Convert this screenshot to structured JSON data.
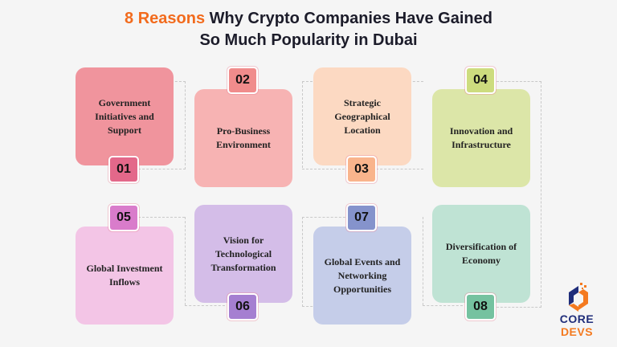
{
  "title": {
    "highlight": "8 Reasons",
    "rest_line1": " Why Crypto Companies Have Gained",
    "line2": "So Much Popularity in Dubai"
  },
  "colors": {
    "highlight": "#f26b1d",
    "logo_blue": "#1f2d7a",
    "logo_orange": "#f47a20"
  },
  "items": [
    {
      "number": "01",
      "label": "Government Initiatives and Support",
      "card": "#f0949d",
      "badge": "#e3688a"
    },
    {
      "number": "02",
      "label": "Pro-Business Environment",
      "card": "#f7b3b3",
      "badge": "#f08c8c"
    },
    {
      "number": "03",
      "label": "Strategic Geographical Location",
      "card": "#fcd9c2",
      "badge": "#f9b48c"
    },
    {
      "number": "04",
      "label": "Innovation and Infrastructure",
      "card": "#dce6a8",
      "badge": "#cddc7e"
    },
    {
      "number": "05",
      "label": "Global Investment Inflows",
      "card": "#f3c5e6",
      "badge": "#d97ccb"
    },
    {
      "number": "06",
      "label": "Vision for Technological Transformation",
      "card": "#d4bde8",
      "badge": "#a57fd1"
    },
    {
      "number": "07",
      "label": "Global Events and Networking Opportunities",
      "card": "#c5cde9",
      "badge": "#8593cc"
    },
    {
      "number": "08",
      "label": "Diversification of Economy",
      "card": "#bfe3d4",
      "badge": "#75c2a0"
    }
  ],
  "logo": {
    "word1": "CORE",
    "word2": "DEVS"
  }
}
